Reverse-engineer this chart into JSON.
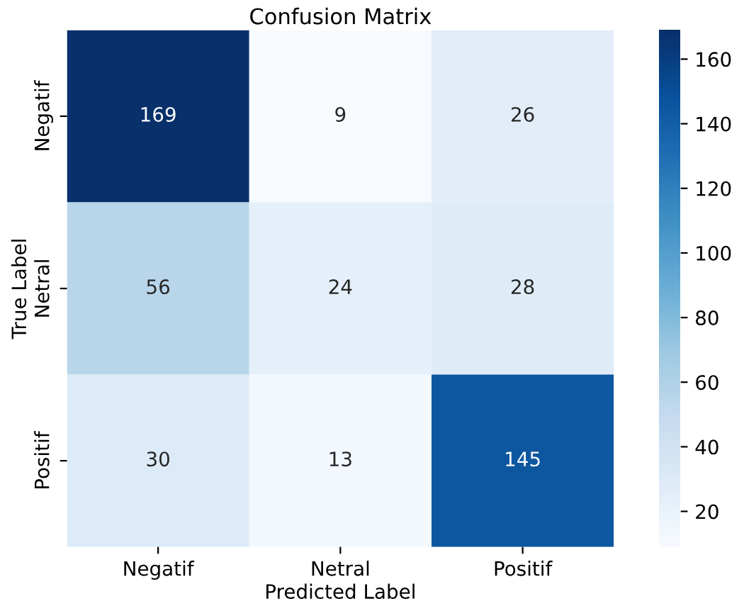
{
  "chart_data": {
    "type": "heatmap",
    "title": "Confusion Matrix",
    "xlabel": "Predicted Label",
    "ylabel": "True Label",
    "categories": [
      "Negatif",
      "Netral",
      "Positif"
    ],
    "y_categories": [
      "Negatif",
      "Netral",
      "Positif"
    ],
    "cells": [
      [
        169,
        9,
        26
      ],
      [
        56,
        24,
        28
      ],
      [
        30,
        13,
        145
      ]
    ],
    "data_labels": true,
    "clim": [
      9,
      169
    ],
    "cticks": [
      20,
      40,
      60,
      80,
      100,
      120,
      140,
      160
    ]
  }
}
